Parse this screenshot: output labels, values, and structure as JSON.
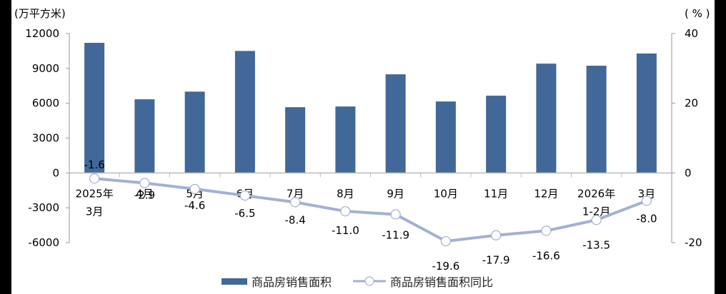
{
  "chart_data": {
    "type": "bar+line",
    "title": "",
    "categories": [
      "2025年\n3月",
      "4月",
      "5月",
      "6月",
      "7月",
      "8月",
      "9月",
      "10月",
      "11月",
      "12月",
      "2026年\n1-2月",
      "3月"
    ],
    "series": [
      {
        "name": "商品房销售面积",
        "type": "bar",
        "axis": "left",
        "color": "#416898",
        "values": [
          11200,
          6340,
          7000,
          10500,
          5660,
          5720,
          8490,
          6150,
          6650,
          9410,
          9230,
          10280
        ]
      },
      {
        "name": "商品房销售面积同比",
        "type": "line",
        "axis": "right",
        "color": "#a3b1d3",
        "values": [
          -1.6,
          -2.9,
          -4.6,
          -6.5,
          -8.4,
          -11.0,
          -11.9,
          -19.6,
          -17.9,
          -16.6,
          -13.5,
          -8.0
        ]
      }
    ],
    "left_axis": {
      "label": "(万平方米)",
      "ticks": [
        12000,
        9000,
        6000,
        3000,
        0,
        -3000,
        -6000
      ],
      "range": [
        -6000,
        12000
      ]
    },
    "right_axis": {
      "label": "(%)",
      "ticks": [
        40,
        20,
        0,
        -20
      ],
      "range": [
        -20,
        40
      ]
    },
    "legend": {
      "position": "bottom",
      "entries": [
        "商品房销售面积",
        "商品房销售面积同比"
      ]
    },
    "grid": false
  },
  "axis_labels": {
    "left_unit": "(万平方米)",
    "right_unit": "( % )"
  },
  "legend": {
    "bar_label": "商品房销售面积",
    "line_label": "商品房销售面积同比"
  }
}
